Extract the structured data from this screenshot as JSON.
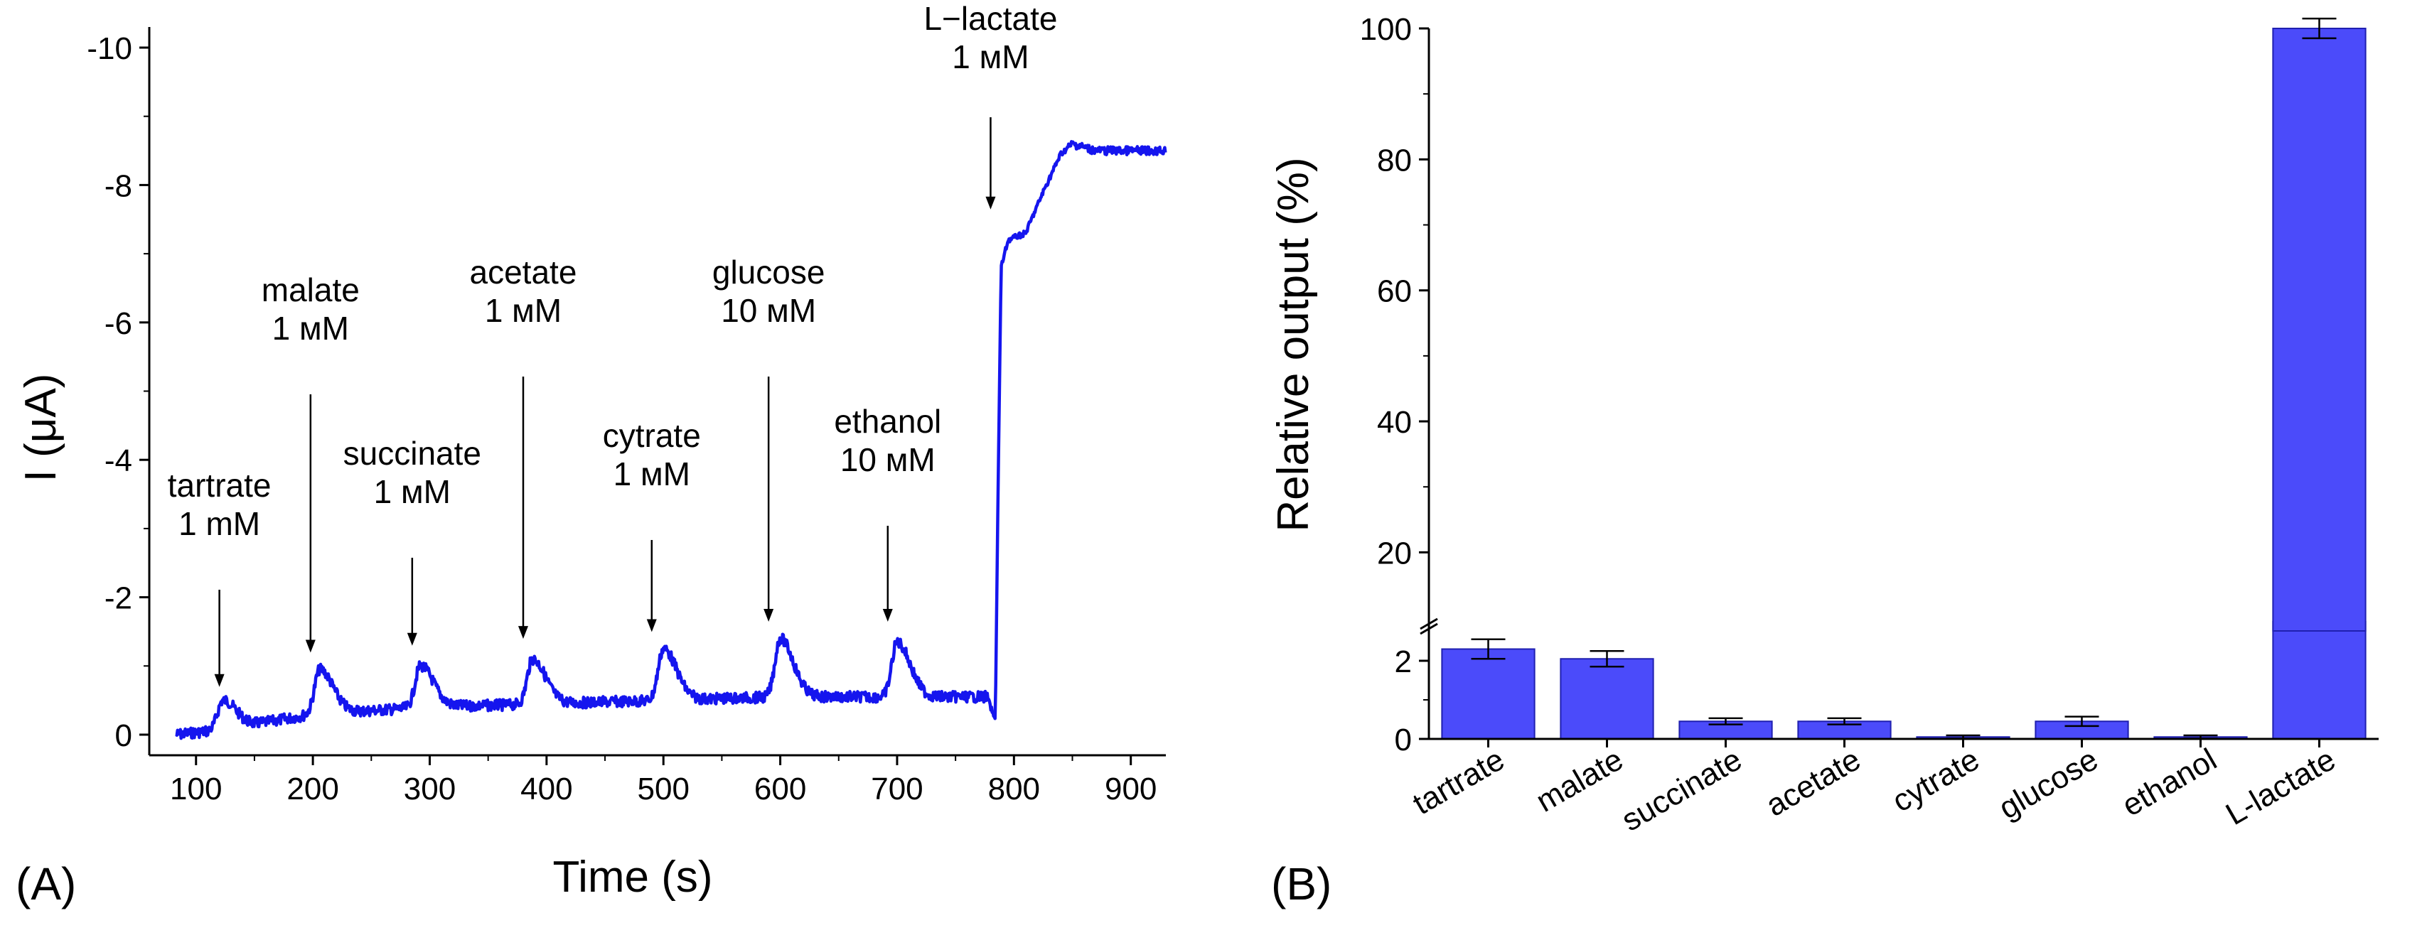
{
  "colors": {
    "trace": "#1515ee",
    "bar": "#4b4bfa",
    "bar_edge": "#2020b0",
    "axis": "#000000"
  },
  "panel_labels": {
    "a": "(A)",
    "b": "(B)"
  },
  "chart_data": [
    {
      "type": "line",
      "panel": "(A)",
      "xlabel": "Time (s)",
      "ylabel": "I (μA)",
      "xlim": [
        60,
        930
      ],
      "ylim": [
        0.3,
        -10.3
      ],
      "y_inverted": true,
      "x_ticks": [
        100,
        200,
        300,
        400,
        500,
        600,
        700,
        800,
        900
      ],
      "x_tick_labels": [
        "100",
        "200",
        "300",
        "400",
        "500",
        "600",
        "700",
        "800",
        "900"
      ],
      "y_ticks": [
        0,
        -2,
        -4,
        -6,
        -8,
        -10
      ],
      "y_tick_labels": [
        "0",
        "-2",
        "-4",
        "-6",
        "-8",
        "-10"
      ],
      "series": [
        {
          "name": "current",
          "baseline": [
            [
              83,
              0.0
            ],
            [
              110,
              -0.05
            ],
            [
              150,
              -0.15
            ],
            [
              200,
              -0.3
            ],
            [
              300,
              -0.4
            ],
            [
              400,
              -0.45
            ],
            [
              500,
              -0.5
            ],
            [
              600,
              -0.55
            ],
            [
              700,
              -0.55
            ],
            [
              775,
              -0.55
            ]
          ],
          "peaks": [
            [
              123,
              -0.5
            ],
            [
              206,
              -0.95
            ],
            [
              292,
              -1.0
            ],
            [
              388,
              -1.1
            ],
            [
              500,
              -1.25
            ],
            [
              600,
              -1.4
            ],
            [
              700,
              -1.35
            ]
          ],
          "step": [
            [
              778,
              -0.5
            ],
            [
              784,
              -0.2
            ],
            [
              786,
              -3.0
            ],
            [
              789,
              -6.8
            ],
            [
              795,
              -7.2
            ],
            [
              810,
              -7.3
            ],
            [
              825,
              -7.9
            ],
            [
              840,
              -8.45
            ],
            [
              850,
              -8.6
            ],
            [
              870,
              -8.5
            ],
            [
              930,
              -8.5
            ]
          ]
        }
      ],
      "annotations": [
        {
          "lines": [
            "tartrate",
            "1 mM"
          ],
          "x": 120,
          "tip_y": -0.55
        },
        {
          "lines": [
            "malate",
            "1 мМ"
          ],
          "x": 198,
          "tip_y": -1.05
        },
        {
          "lines": [
            "succinate",
            "1 мМ"
          ],
          "x": 285,
          "tip_y": -1.15
        },
        {
          "lines": [
            "acetate",
            "1 мМ"
          ],
          "x": 380,
          "tip_y": -1.25
        },
        {
          "lines": [
            "cytrate",
            "1 мМ"
          ],
          "x": 490,
          "tip_y": -1.35
        },
        {
          "lines": [
            "glucose",
            "10 мМ"
          ],
          "x": 590,
          "tip_y": -1.5
        },
        {
          "lines": [
            "ethanol",
            "10 мМ"
          ],
          "x": 692,
          "tip_y": -1.5
        },
        {
          "lines": [
            "L−lactate",
            "1 мМ"
          ],
          "x": 780,
          "tip_y": -7.5
        }
      ]
    },
    {
      "type": "bar",
      "panel": "(B)",
      "xlabel": "",
      "ylabel": "Relative output (%)",
      "y_axis_break": [
        3,
        8
      ],
      "ylim_lower": [
        0,
        3
      ],
      "ylim_upper": [
        8,
        100
      ],
      "y_ticks": [
        0,
        2,
        20,
        40,
        60,
        80,
        100
      ],
      "y_tick_labels": [
        "0",
        "2",
        "20",
        "40",
        "60",
        "80",
        "100"
      ],
      "categories": [
        "tartrate",
        "malate",
        "succinate",
        "acetate",
        "cytrate",
        "glucose",
        "ethanol",
        "L-lactate"
      ],
      "values": [
        2.3,
        2.05,
        0.45,
        0.45,
        0.05,
        0.45,
        0.05,
        100
      ],
      "errors": [
        0.25,
        0.2,
        0.08,
        0.08,
        0.04,
        0.12,
        0.04,
        1.5
      ]
    }
  ]
}
